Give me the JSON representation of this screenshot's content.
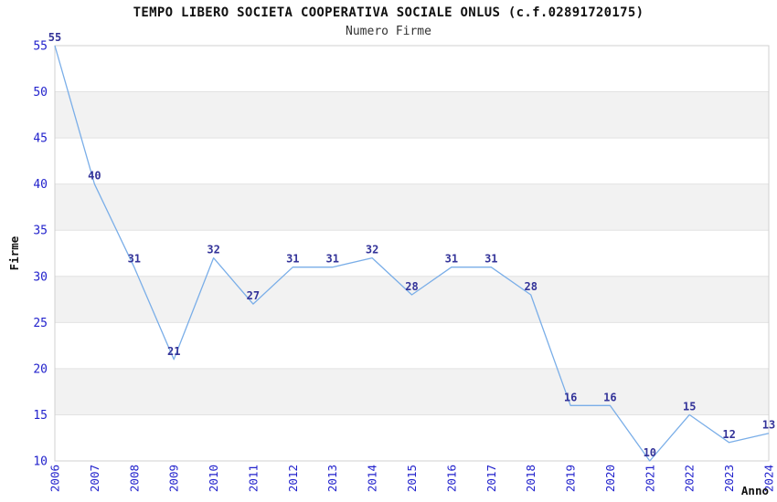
{
  "chart_data": {
    "type": "line",
    "title": "TEMPO LIBERO SOCIETA COOPERATIVA SOCIALE ONLUS (c.f.02891720175)",
    "subtitle": "Numero Firme",
    "xlabel": "Anno",
    "ylabel": "Firme",
    "x": [
      "2006",
      "2007",
      "2008",
      "2009",
      "2010",
      "2011",
      "2012",
      "2013",
      "2014",
      "2015",
      "2016",
      "2017",
      "2018",
      "2019",
      "2020",
      "2021",
      "2022",
      "2023",
      "2024"
    ],
    "values": [
      55,
      40,
      31,
      21,
      32,
      27,
      31,
      31,
      32,
      28,
      31,
      31,
      28,
      16,
      16,
      10,
      15,
      12,
      13
    ],
    "ylim": [
      10,
      55
    ],
    "ytick_step": 5,
    "yticks": [
      10,
      15,
      20,
      25,
      30,
      35,
      40,
      45,
      50,
      55
    ],
    "grid": "alternating-horizontal-bands",
    "legend_position": "none",
    "point_labels_visible": true,
    "colors": {
      "line": "#7aaee8",
      "tick_label": "#2222cc",
      "point_label": "#333399",
      "band": "#f2f2f2",
      "gridline": "#e2e2e2",
      "plot_border": "#d0d0d0",
      "title": "#111111",
      "subtitle": "#333333",
      "axis_title": "#111111",
      "background": "#ffffff"
    }
  }
}
